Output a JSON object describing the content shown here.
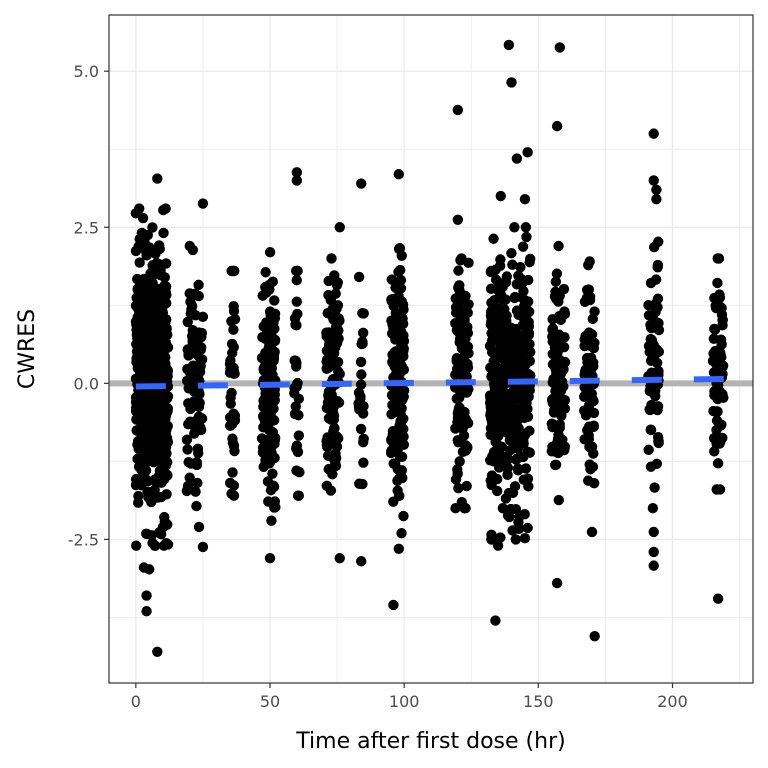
{
  "chart_data": {
    "type": "scatter",
    "title": "",
    "xlabel": "Time after first dose (hr)",
    "ylabel": "CWRES",
    "xlim": [
      -10,
      230
    ],
    "ylim": [
      -4.8,
      5.9
    ],
    "x_ticks": [
      0,
      50,
      100,
      150,
      200
    ],
    "x_tick_labels": [
      "0",
      "50",
      "100",
      "150",
      "200"
    ],
    "y_ticks": [
      -2.5,
      0.0,
      2.5,
      5.0
    ],
    "y_tick_labels": [
      "-2.5",
      "0.0",
      "2.5",
      "5.0"
    ],
    "grid": true,
    "reference_line": {
      "y": 0,
      "color": "#b3b3b3"
    },
    "trend": {
      "style": "dashed",
      "color": "#3366ff",
      "x": [
        0,
        220
      ],
      "y": [
        -0.05,
        0.07
      ]
    },
    "point_color": "#000000",
    "time_clusters": [
      {
        "x_range": [
          0,
          12
        ],
        "n": 650,
        "spread": 1.0,
        "y_range": [
          -2.6,
          2.8
        ]
      },
      {
        "x_range": [
          19,
          25
        ],
        "n": 90,
        "spread": 0.95,
        "y_range": [
          -2.3,
          2.2
        ]
      },
      {
        "x_range": [
          35,
          37
        ],
        "n": 40,
        "spread": 0.9,
        "y_range": [
          -1.8,
          1.8
        ]
      },
      {
        "x_range": [
          47,
          52
        ],
        "n": 160,
        "spread": 0.95,
        "y_range": [
          -2.2,
          2.1
        ]
      },
      {
        "x_range": [
          59,
          61
        ],
        "n": 30,
        "spread": 0.9,
        "y_range": [
          -1.8,
          1.8
        ]
      },
      {
        "x_range": [
          71,
          76
        ],
        "n": 130,
        "spread": 0.9,
        "y_range": [
          -2.0,
          2.0
        ]
      },
      {
        "x_range": [
          83,
          85
        ],
        "n": 25,
        "spread": 0.8,
        "y_range": [
          -1.8,
          1.8
        ]
      },
      {
        "x_range": [
          95,
          100
        ],
        "n": 150,
        "spread": 0.95,
        "y_range": [
          -2.4,
          2.2
        ]
      },
      {
        "x_range": [
          119,
          124
        ],
        "n": 110,
        "spread": 0.9,
        "y_range": [
          -2.0,
          2.0
        ]
      },
      {
        "x_range": [
          132,
          147
        ],
        "n": 420,
        "spread": 1.0,
        "y_range": [
          -2.5,
          2.5
        ]
      },
      {
        "x_range": [
          155,
          160
        ],
        "n": 90,
        "spread": 0.9,
        "y_range": [
          -2.2,
          2.2
        ]
      },
      {
        "x_range": [
          167,
          171
        ],
        "n": 80,
        "spread": 0.9,
        "y_range": [
          -2.0,
          2.2
        ]
      },
      {
        "x_range": [
          191,
          195
        ],
        "n": 70,
        "spread": 0.9,
        "y_range": [
          -2.0,
          2.3
        ]
      },
      {
        "x_range": [
          215,
          219
        ],
        "n": 65,
        "spread": 0.85,
        "y_range": [
          -1.7,
          2.0
        ]
      }
    ],
    "notable_points": [
      {
        "x": 139,
        "y": 5.42
      },
      {
        "x": 158,
        "y": 5.38
      },
      {
        "x": 140,
        "y": 4.82
      },
      {
        "x": 120,
        "y": 4.38
      },
      {
        "x": 157,
        "y": 4.12
      },
      {
        "x": 193,
        "y": 4.0
      },
      {
        "x": 146,
        "y": 3.7
      },
      {
        "x": 142,
        "y": 3.6
      },
      {
        "x": 60,
        "y": 3.38
      },
      {
        "x": 60,
        "y": 3.25
      },
      {
        "x": 98,
        "y": 3.35
      },
      {
        "x": 84,
        "y": 3.2
      },
      {
        "x": 8,
        "y": 3.28
      },
      {
        "x": 193,
        "y": 3.25
      },
      {
        "x": 194,
        "y": 3.1
      },
      {
        "x": 136,
        "y": 3.0
      },
      {
        "x": 145,
        "y": 2.95
      },
      {
        "x": 25,
        "y": 2.88
      },
      {
        "x": 194,
        "y": 2.95
      },
      {
        "x": 120,
        "y": 2.62
      },
      {
        "x": 76,
        "y": 2.5
      },
      {
        "x": 3,
        "y": -2.95
      },
      {
        "x": 5,
        "y": -2.98
      },
      {
        "x": 4,
        "y": -3.4
      },
      {
        "x": 4,
        "y": -3.65
      },
      {
        "x": 8,
        "y": -4.3
      },
      {
        "x": 134,
        "y": -3.8
      },
      {
        "x": 171,
        "y": -4.05
      },
      {
        "x": 96,
        "y": -3.55
      },
      {
        "x": 217,
        "y": -3.45
      },
      {
        "x": 157,
        "y": -3.2
      },
      {
        "x": 50,
        "y": -2.8
      },
      {
        "x": 76,
        "y": -2.8
      },
      {
        "x": 84,
        "y": -2.85
      },
      {
        "x": 193,
        "y": -2.7
      },
      {
        "x": 193,
        "y": -2.92
      },
      {
        "x": 25,
        "y": -2.62
      },
      {
        "x": 12,
        "y": -2.58
      },
      {
        "x": 170,
        "y": -2.38
      },
      {
        "x": 193,
        "y": -2.38
      },
      {
        "x": 135,
        "y": -2.6
      },
      {
        "x": 145,
        "y": -2.48
      },
      {
        "x": 98,
        "y": -2.65
      }
    ]
  }
}
